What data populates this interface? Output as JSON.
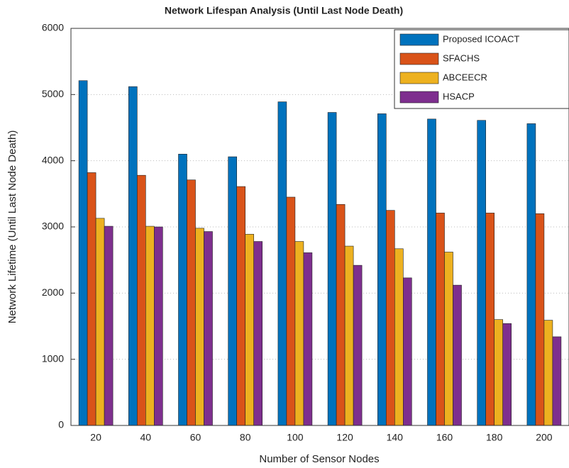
{
  "chart_data": {
    "type": "bar",
    "title": "Network Lifespan Analysis (Until Last Node Death)",
    "x_label": "Number of Sensor Nodes",
    "y_label": "Network Lifetime (Until Last Node Death)",
    "categories": [
      "20",
      "40",
      "60",
      "80",
      "100",
      "120",
      "140",
      "160",
      "180",
      "200"
    ],
    "series": [
      {
        "name": "Proposed ICOACT",
        "color": "#0072BD",
        "values": [
          5210,
          5120,
          4100,
          4060,
          4890,
          4730,
          4710,
          4630,
          4610,
          4560
        ]
      },
      {
        "name": "SFACHS",
        "color": "#D95319",
        "values": [
          3820,
          3780,
          3710,
          3610,
          3450,
          3340,
          3250,
          3210,
          3210,
          3200
        ]
      },
      {
        "name": "ABCEECR",
        "color": "#EDB120",
        "values": [
          3130,
          3010,
          2980,
          2890,
          2780,
          2710,
          2670,
          2620,
          1600,
          1590
        ]
      },
      {
        "name": "HSACP",
        "color": "#7E2F8E",
        "values": [
          3010,
          3000,
          2930,
          2780,
          2610,
          2420,
          2230,
          2120,
          1540,
          1340
        ]
      }
    ],
    "ylim": [
      0,
      6000
    ],
    "yticks": [
      0,
      1000,
      2000,
      3000,
      4000,
      5000,
      6000
    ],
    "grid": true,
    "legend": "top-right"
  }
}
